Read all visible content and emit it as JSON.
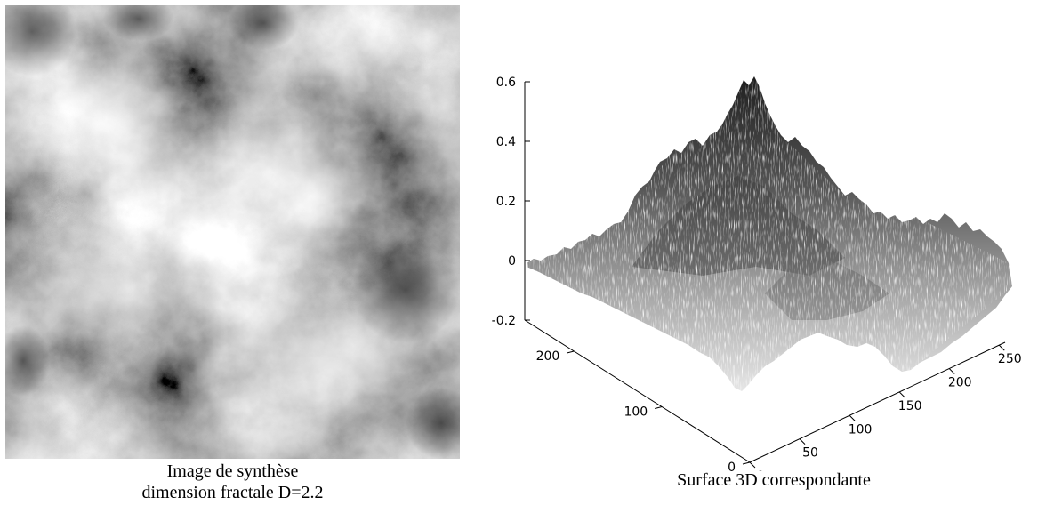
{
  "captions": {
    "left_line1": "Image de synthèse",
    "left_line2": "dimension fractale D=2.2",
    "right": "Surface 3D correspondante"
  },
  "chart_data": [
    {
      "type": "heatmap",
      "title": "",
      "colormap": "gray",
      "description_scale": [
        0,
        255
      ],
      "x_range": [
        0,
        256
      ],
      "y_range": [
        0,
        256
      ]
    },
    {
      "type": "surface",
      "title": "",
      "colormap": "gray",
      "x_ticks": [
        "0",
        "50",
        "100",
        "150",
        "200",
        "250"
      ],
      "y_ticks": [
        "0",
        "100",
        "200"
      ],
      "z_ticks": [
        "-0.2",
        "0",
        "0.2",
        "0.4",
        "0.6"
      ],
      "x_range": [
        0,
        256
      ],
      "y_range": [
        0,
        256
      ],
      "z_range": [
        -0.2,
        0.6
      ]
    }
  ]
}
